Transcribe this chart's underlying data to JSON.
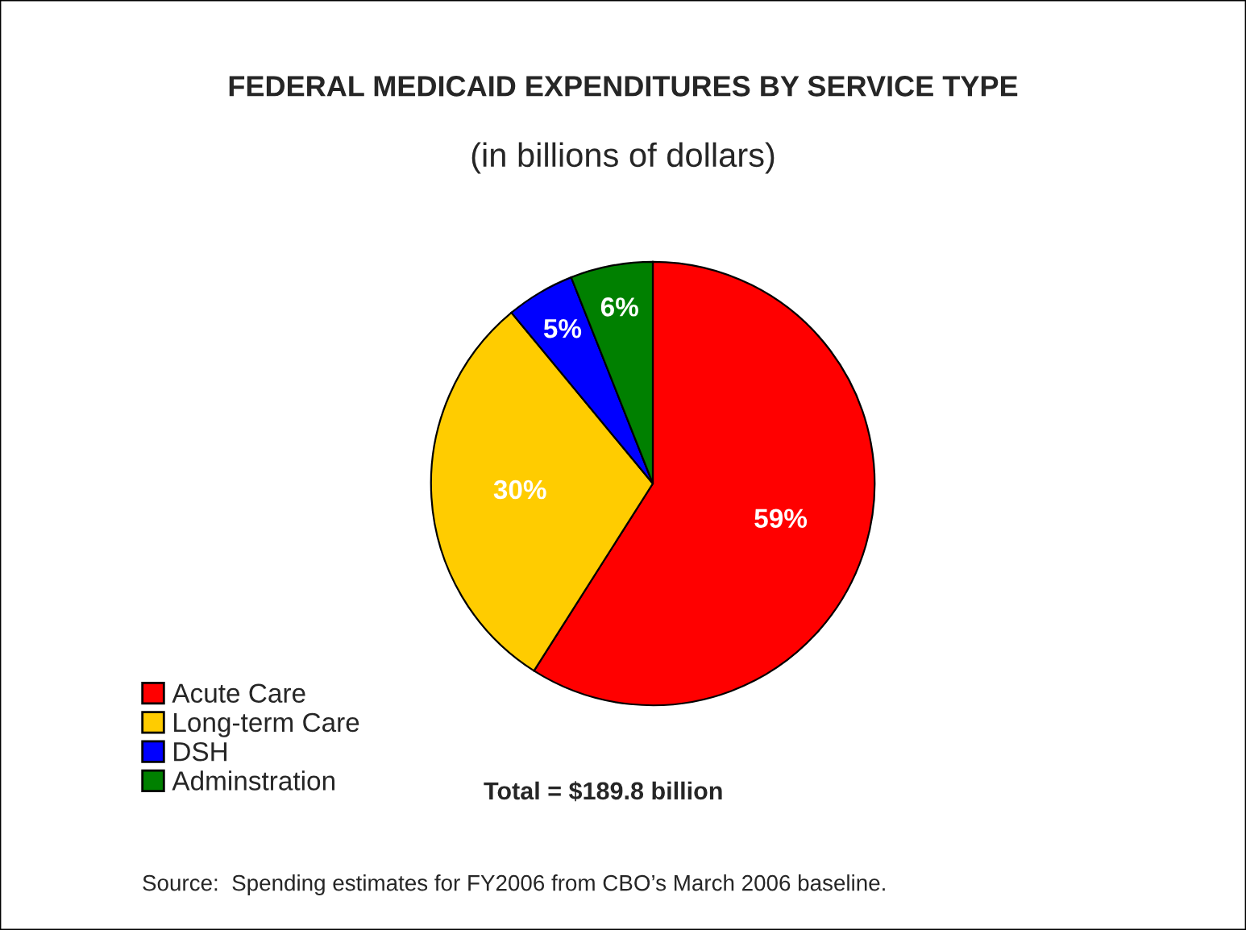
{
  "chart_data": {
    "type": "pie",
    "title": "FEDERAL MEDICAID EXPENDITURES BY SERVICE TYPE",
    "subtitle": "(in billions of dollars)",
    "categories": [
      "Acute Care",
      "Long-term Care",
      "DSH",
      "Adminstration"
    ],
    "values": [
      59,
      30,
      5,
      6
    ],
    "colors": [
      "#ff0000",
      "#ffcc00",
      "#0000ff",
      "#008000"
    ],
    "value_labels": [
      "59%",
      "30%",
      "5%",
      "6%"
    ],
    "legend": "bottom left",
    "annotations": [
      "Total = $189.8 billion",
      "Source:  Spending estimates for FY2006 from CBO’s March 2006 baseline."
    ]
  }
}
